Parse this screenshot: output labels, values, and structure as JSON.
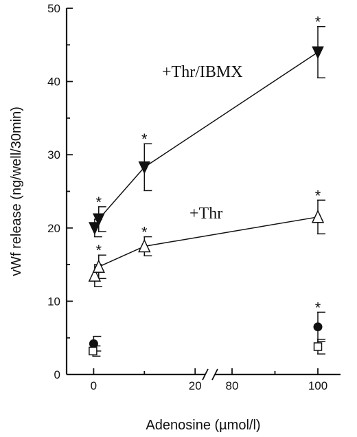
{
  "chart_data": {
    "type": "scatter",
    "title": "",
    "xlabel": "Adenosine (µmol/l)",
    "ylabel": "vWf release (ng/well/30min)",
    "ylim": [
      0,
      50
    ],
    "yticks": [
      0,
      10,
      20,
      30,
      40,
      50
    ],
    "x_axis_break": true,
    "x_segments": [
      {
        "xlim": [
          -1,
          22
        ],
        "ticks": [
          0,
          20
        ]
      },
      {
        "xlim": [
          76,
          104
        ],
        "ticks": [
          80,
          100
        ]
      }
    ],
    "grid": false,
    "series": [
      {
        "name": "+Thr/IBMX",
        "marker": "filled-triangle-down",
        "line": true,
        "x": [
          0,
          1,
          10,
          100
        ],
        "y": [
          20.0,
          21.2,
          28.3,
          44.0
        ],
        "error": [
          1.2,
          1.7,
          3.2,
          3.5
        ],
        "significant": [
          false,
          true,
          true,
          true
        ]
      },
      {
        "name": "+Thr",
        "marker": "open-triangle-up",
        "line": true,
        "x": [
          0,
          1,
          10,
          100
        ],
        "y": [
          13.5,
          14.7,
          17.5,
          21.5
        ],
        "error": [
          1.5,
          1.6,
          1.3,
          2.3
        ],
        "significant": [
          false,
          true,
          true,
          true
        ]
      },
      {
        "name": "",
        "marker": "filled-circle",
        "line": false,
        "x": [
          0,
          100
        ],
        "y": [
          4.2,
          6.5
        ],
        "error": [
          1.0,
          2.0
        ],
        "significant": [
          false,
          true
        ]
      },
      {
        "name": "",
        "marker": "open-square",
        "line": false,
        "x": [
          0,
          100
        ],
        "y": [
          3.2,
          3.8
        ],
        "error": [
          0.7,
          1.0
        ],
        "significant": [
          false,
          false
        ]
      }
    ],
    "annotations": [
      {
        "text": "+Thr/IBMX",
        "series": 0
      },
      {
        "text": "+Thr",
        "series": 1
      },
      {
        "text": "*",
        "meaning": "significance marker"
      }
    ]
  }
}
